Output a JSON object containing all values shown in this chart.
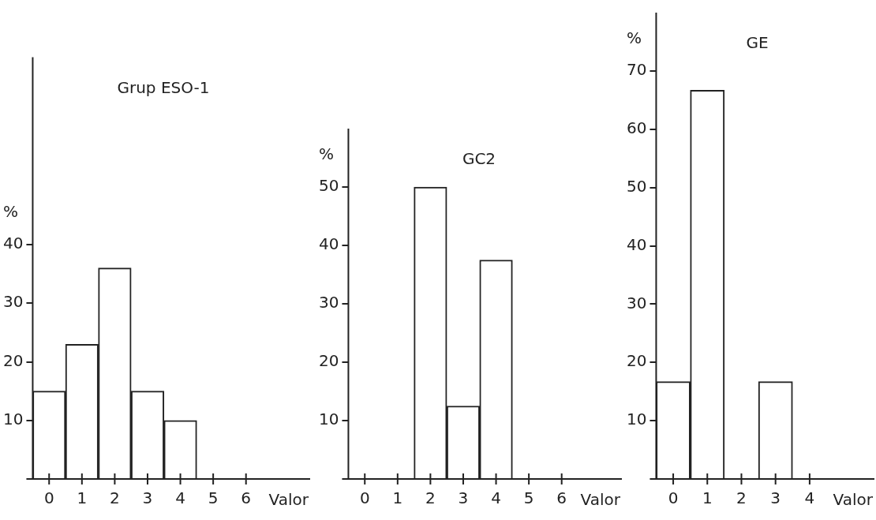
{
  "chart_data": [
    {
      "type": "bar",
      "title": "Grup ESO-1",
      "xlabel": "Valor",
      "ylabel": "%",
      "categories": [
        "0",
        "1",
        "2",
        "3",
        "4",
        "5",
        "6"
      ],
      "values": [
        15,
        23,
        36,
        15,
        10,
        null,
        null
      ],
      "color": "#ffffff",
      "ylim": [
        0,
        72
      ],
      "yticks": [
        10,
        20,
        30,
        40
      ],
      "grid": false
    },
    {
      "type": "bar",
      "title": "GC2",
      "xlabel": "Valor",
      "ylabel": "%",
      "categories": [
        "0",
        "1",
        "2",
        "3",
        "4",
        "5",
        "6"
      ],
      "values": [
        null,
        null,
        50,
        12.5,
        37.5,
        null,
        null
      ],
      "color": "#ffffff",
      "ylim": [
        0,
        60
      ],
      "yticks": [
        10,
        20,
        30,
        40,
        50
      ],
      "grid": false
    },
    {
      "type": "bar",
      "title": "GE",
      "xlabel": "Valor",
      "ylabel": "%",
      "categories": [
        "0",
        "1",
        "2",
        "3",
        "4"
      ],
      "values": [
        16.7,
        66.7,
        null,
        16.7,
        null
      ],
      "color": "#ffffff",
      "ylim": [
        0,
        80
      ],
      "yticks": [
        10,
        20,
        30,
        40,
        50,
        60,
        70
      ],
      "grid": false
    }
  ]
}
